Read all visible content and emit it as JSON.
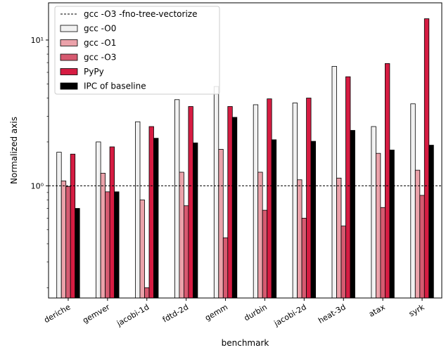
{
  "chart_data": {
    "type": "bar",
    "xlabel": "benchmark",
    "ylabel": "Normalized axis",
    "yscale": "log",
    "ylim": [
      0.17,
      18
    ],
    "yticks": [
      {
        "value": 1,
        "label": "10⁰"
      },
      {
        "value": 10,
        "label": "10¹"
      }
    ],
    "grid": false,
    "legend_position": "top-left",
    "categories": [
      "deriche",
      "gemver",
      "jacobi-1d",
      "fdtd-2d",
      "gemm",
      "durbin",
      "jacobi-2d",
      "heat-3d",
      "atax",
      "syrk"
    ],
    "reference_line": {
      "name": "gcc -O3 -fno-tree-vectorize",
      "value": 1.0,
      "style": "dashed",
      "color": "#000000"
    },
    "series": [
      {
        "name": "gcc -O0",
        "color": "#f2f2f2",
        "values": [
          1.7,
          2.0,
          2.75,
          3.9,
          4.8,
          3.6,
          3.7,
          6.6,
          2.55,
          3.65
        ]
      },
      {
        "name": "gcc -O1",
        "color": "#eba2aa",
        "values": [
          1.08,
          1.22,
          0.8,
          1.24,
          1.78,
          1.24,
          1.1,
          1.13,
          1.67,
          1.28
        ]
      },
      {
        "name": "gcc -O3",
        "color": "#d65a70",
        "values": [
          0.99,
          0.91,
          0.2,
          0.73,
          0.44,
          0.68,
          0.6,
          0.53,
          0.71,
          0.86
        ]
      },
      {
        "name": "PyPy",
        "color": "#d61c42",
        "values": [
          1.65,
          1.85,
          2.55,
          3.5,
          3.5,
          3.95,
          4.0,
          5.6,
          6.9,
          14.0
        ]
      },
      {
        "name": "IPC of baseline",
        "color": "#000000",
        "values": [
          0.7,
          0.91,
          2.12,
          1.97,
          2.95,
          2.07,
          2.02,
          2.4,
          1.76,
          1.9
        ]
      }
    ]
  }
}
